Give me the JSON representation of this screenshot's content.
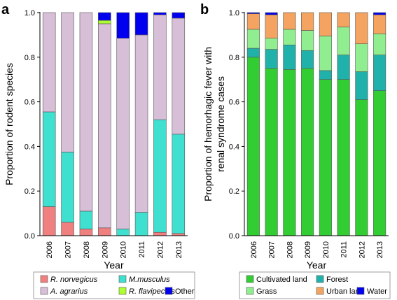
{
  "chart_data": [
    {
      "panel_label": "a",
      "type": "bar",
      "stacked": true,
      "ylabel": "Proportion of rodent species",
      "xlabel": "Year",
      "ylim": [
        0,
        1.0
      ],
      "yticks": [
        "0.0",
        "0.2",
        "0.4",
        "0.6",
        "0.8",
        "1.0"
      ],
      "categories": [
        "2006",
        "2007",
        "2008",
        "2009",
        "2010",
        "2011",
        "2012",
        "2013"
      ],
      "series": [
        {
          "name": "R. norvegicus",
          "italic": true,
          "color": "#f08080",
          "values": [
            0.13,
            0.06,
            0.03,
            0.035,
            0.0,
            0.0,
            0.015,
            0.01
          ]
        },
        {
          "name": "M.musculus",
          "italic": true,
          "color": "#40e0d0",
          "values": [
            0.425,
            0.315,
            0.08,
            0.0,
            0.03,
            0.105,
            0.505,
            0.445
          ]
        },
        {
          "name": "A. agrarius",
          "italic": true,
          "color": "#d8bfd8",
          "values": [
            0.445,
            0.625,
            0.89,
            0.915,
            0.855,
            0.795,
            0.47,
            0.52
          ]
        },
        {
          "name": "R. flavipectus",
          "italic": true,
          "color": "#adff2f",
          "values": [
            0.0,
            0.0,
            0.0,
            0.015,
            0.0,
            0.0,
            0.0,
            0.0
          ]
        },
        {
          "name": "Other",
          "italic": false,
          "color": "#0000ee",
          "values": [
            0.0,
            0.0,
            0.0,
            0.035,
            0.115,
            0.1,
            0.01,
            0.025
          ]
        }
      ],
      "legend_position": "bottom"
    },
    {
      "panel_label": "b",
      "type": "bar",
      "stacked": true,
      "ylabel_lines": [
        "Proportion of hemorhagic fever with",
        "renal syndrome cases"
      ],
      "xlabel": "Year",
      "ylim": [
        0,
        1.0
      ],
      "yticks": [
        "0.0",
        "0.2",
        "0.4",
        "0.6",
        "0.8",
        "1.0"
      ],
      "categories": [
        "2006",
        "2007",
        "2008",
        "2009",
        "2010",
        "2011",
        "2012",
        "2013"
      ],
      "series": [
        {
          "name": "Cultivated land",
          "italic": false,
          "color": "#32cd32",
          "values": [
            0.8,
            0.75,
            0.745,
            0.75,
            0.7,
            0.7,
            0.61,
            0.65
          ]
        },
        {
          "name": "Forest",
          "italic": false,
          "color": "#20b2aa",
          "values": [
            0.04,
            0.085,
            0.11,
            0.08,
            0.04,
            0.11,
            0.125,
            0.16
          ]
        },
        {
          "name": "Grass",
          "italic": false,
          "color": "#90ee90",
          "values": [
            0.085,
            0.05,
            0.07,
            0.09,
            0.155,
            0.125,
            0.125,
            0.095
          ]
        },
        {
          "name": "Urban land",
          "italic": false,
          "color": "#f4a460",
          "values": [
            0.07,
            0.105,
            0.075,
            0.08,
            0.105,
            0.065,
            0.14,
            0.085
          ]
        },
        {
          "name": "Water",
          "italic": false,
          "color": "#0000ee",
          "values": [
            0.005,
            0.01,
            0.0,
            0.0,
            0.0,
            0.0,
            0.0,
            0.01
          ]
        }
      ],
      "legend_position": "bottom"
    }
  ]
}
